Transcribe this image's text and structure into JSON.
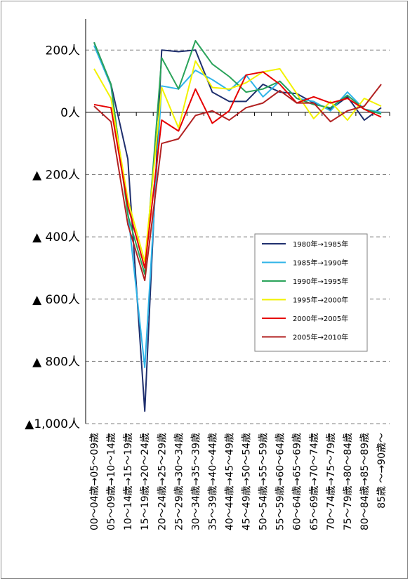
{
  "chart_data": {
    "type": "line",
    "title": "",
    "xlabel": "",
    "ylabel": "",
    "ylim": [
      -1000,
      300
    ],
    "y_ticks": [
      {
        "value": 200,
        "label": "200人"
      },
      {
        "value": 0,
        "label": "0人"
      },
      {
        "value": -200,
        "label": "▲ 200人"
      },
      {
        "value": -400,
        "label": "▲ 400人"
      },
      {
        "value": -600,
        "label": "▲ 600人"
      },
      {
        "value": -800,
        "label": "▲ 800人"
      },
      {
        "value": -1000,
        "label": "▲1,000人"
      }
    ],
    "grid": "horizontal dashed",
    "legend_position": "right-middle",
    "categories": [
      "00～04歳→05～09歳",
      "05～09歳→10～14歳",
      "10～14歳→15～19歳",
      "15～19歳→20～24歳",
      "20～24歳→25～29歳",
      "25～29歳→30～34歳",
      "30～34歳→35～39歳",
      "35～39歳→40～44歳",
      "40～44歳→45～49歳",
      "45～49歳→50～54歳",
      "50～54歳→55～59歳",
      "55～59歳→60～64歳",
      "60～64歳→65～69歳",
      "65～69歳→70～74歳",
      "70～74歳→75～79歳",
      "75～79歳→80～84歳",
      "80～84歳→85～89歳",
      "85歳 ～→90歳～"
    ],
    "series": [
      {
        "name": "1980年→1985年",
        "color": "#1f2f6e",
        "values": [
          225,
          90,
          -150,
          -960,
          200,
          195,
          200,
          65,
          35,
          35,
          90,
          65,
          60,
          30,
          10,
          50,
          -25,
          15
        ]
      },
      {
        "name": "1985年→1990年",
        "color": "#2fb4e8",
        "values": [
          215,
          85,
          -320,
          -820,
          85,
          75,
          135,
          105,
          70,
          120,
          50,
          100,
          45,
          35,
          5,
          65,
          10,
          0
        ]
      },
      {
        "name": "1990年→1995年",
        "color": "#2aa35a",
        "values": [
          225,
          90,
          -330,
          -520,
          175,
          75,
          230,
          155,
          115,
          65,
          75,
          100,
          45,
          25,
          15,
          55,
          10,
          -5
        ]
      },
      {
        "name": "1995年→2000年",
        "color": "#f2f200",
        "values": [
          140,
          45,
          -280,
          -480,
          80,
          -50,
          165,
          80,
          75,
          95,
          130,
          140,
          60,
          -20,
          35,
          -25,
          45,
          20
        ]
      },
      {
        "name": "2000年→2005年",
        "color": "#e60000",
        "values": [
          25,
          15,
          -300,
          -500,
          -25,
          -60,
          75,
          -35,
          5,
          120,
          130,
          90,
          30,
          50,
          30,
          45,
          10,
          -15
        ]
      },
      {
        "name": "2005年→2010年",
        "color": "#b22222",
        "values": [
          20,
          -30,
          -360,
          -540,
          -100,
          -85,
          -10,
          5,
          -25,
          15,
          30,
          70,
          30,
          30,
          -30,
          5,
          20,
          90
        ]
      }
    ]
  }
}
